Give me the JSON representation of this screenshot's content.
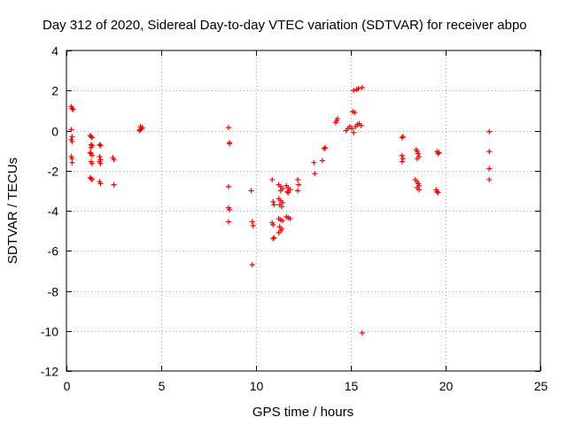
{
  "chart_data": {
    "type": "scatter",
    "title": "Day 312 of 2020, Sidereal Day-to-day VTEC variation (SDTVAR) for receiver abpo",
    "xlabel": "GPS time / hours",
    "ylabel": "SDTVAR / TECUs",
    "xlim": [
      0,
      25
    ],
    "ylim": [
      -12,
      4
    ],
    "xticks": [
      0,
      5,
      10,
      15,
      20,
      25
    ],
    "yticks": [
      -12,
      -10,
      -8,
      -6,
      -4,
      -2,
      0,
      2,
      4
    ],
    "grid": true,
    "marker": "plus",
    "color": "#ff0000",
    "series": [
      {
        "name": "SDTVAR",
        "points": [
          [
            0.25,
            1.2
          ],
          [
            0.3,
            1.1
          ],
          [
            0.35,
            1.05
          ],
          [
            0.25,
            0.05
          ],
          [
            0.3,
            -0.3
          ],
          [
            0.25,
            -0.45
          ],
          [
            0.3,
            -0.55
          ],
          [
            0.25,
            -1.3
          ],
          [
            0.3,
            -1.4
          ],
          [
            0.3,
            -1.6
          ],
          [
            1.25,
            -0.25
          ],
          [
            1.3,
            -0.3
          ],
          [
            1.35,
            -0.35
          ],
          [
            1.3,
            -0.7
          ],
          [
            1.35,
            -0.75
          ],
          [
            1.3,
            -0.85
          ],
          [
            1.25,
            -1.1
          ],
          [
            1.3,
            -1.15
          ],
          [
            1.35,
            -1.25
          ],
          [
            1.3,
            -1.55
          ],
          [
            1.35,
            -1.65
          ],
          [
            1.25,
            -2.35
          ],
          [
            1.3,
            -2.4
          ],
          [
            1.35,
            -2.45
          ],
          [
            1.75,
            -0.7
          ],
          [
            1.8,
            -0.75
          ],
          [
            1.75,
            -1.3
          ],
          [
            1.8,
            -1.45
          ],
          [
            1.75,
            -1.55
          ],
          [
            1.8,
            -1.65
          ],
          [
            1.75,
            -2.55
          ],
          [
            1.8,
            -2.65
          ],
          [
            2.45,
            -1.35
          ],
          [
            2.5,
            -1.45
          ],
          [
            2.5,
            -2.7
          ],
          [
            3.85,
            0.0
          ],
          [
            3.9,
            0.05
          ],
          [
            3.95,
            0.1
          ],
          [
            4.0,
            0.15
          ],
          [
            3.9,
            0.2
          ],
          [
            8.55,
            0.15
          ],
          [
            8.6,
            -0.6
          ],
          [
            8.6,
            -0.65
          ],
          [
            8.55,
            -2.8
          ],
          [
            8.55,
            -3.85
          ],
          [
            8.6,
            -3.95
          ],
          [
            8.55,
            -4.55
          ],
          [
            9.75,
            -3.0
          ],
          [
            9.8,
            -4.55
          ],
          [
            9.85,
            -4.75
          ],
          [
            9.8,
            -6.7
          ],
          [
            10.85,
            -2.45
          ],
          [
            10.9,
            -3.55
          ],
          [
            10.95,
            -3.7
          ],
          [
            10.85,
            -4.6
          ],
          [
            10.9,
            -4.7
          ],
          [
            10.95,
            -5.35
          ],
          [
            10.9,
            -5.4
          ],
          [
            11.2,
            -2.7
          ],
          [
            11.3,
            -2.8
          ],
          [
            11.4,
            -2.9
          ],
          [
            11.3,
            -3.0
          ],
          [
            11.2,
            -3.4
          ],
          [
            11.3,
            -3.5
          ],
          [
            11.4,
            -3.6
          ],
          [
            11.25,
            -3.7
          ],
          [
            11.35,
            -3.8
          ],
          [
            11.2,
            -4.4
          ],
          [
            11.3,
            -4.45
          ],
          [
            11.4,
            -4.5
          ],
          [
            11.25,
            -4.8
          ],
          [
            11.35,
            -4.9
          ],
          [
            11.3,
            -5.0
          ],
          [
            11.2,
            -5.1
          ],
          [
            11.6,
            -2.75
          ],
          [
            11.7,
            -2.85
          ],
          [
            11.8,
            -2.95
          ],
          [
            11.65,
            -3.05
          ],
          [
            11.7,
            -3.1
          ],
          [
            11.6,
            -4.3
          ],
          [
            11.7,
            -4.35
          ],
          [
            11.8,
            -4.4
          ],
          [
            12.2,
            -2.45
          ],
          [
            12.25,
            -2.7
          ],
          [
            12.2,
            -3.0
          ],
          [
            13.05,
            -1.6
          ],
          [
            13.1,
            -2.15
          ],
          [
            13.5,
            -1.5
          ],
          [
            13.6,
            -0.9
          ],
          [
            13.65,
            -0.85
          ],
          [
            14.2,
            0.4
          ],
          [
            14.25,
            0.5
          ],
          [
            14.3,
            0.6
          ],
          [
            14.75,
            0.0
          ],
          [
            14.85,
            0.1
          ],
          [
            14.95,
            0.2
          ],
          [
            15.05,
            0.1
          ],
          [
            15.15,
            -0.1
          ],
          [
            15.1,
            0.95
          ],
          [
            15.2,
            0.9
          ],
          [
            15.25,
            0.2
          ],
          [
            15.35,
            0.3
          ],
          [
            15.45,
            0.35
          ],
          [
            15.55,
            0.25
          ],
          [
            15.15,
            2.0
          ],
          [
            15.3,
            2.05
          ],
          [
            15.4,
            2.1
          ],
          [
            15.6,
            2.15
          ],
          [
            15.6,
            -10.1
          ],
          [
            17.7,
            -0.35
          ],
          [
            17.75,
            -0.3
          ],
          [
            17.7,
            -1.25
          ],
          [
            17.75,
            -1.4
          ],
          [
            17.7,
            -1.55
          ],
          [
            18.45,
            -0.95
          ],
          [
            18.5,
            -1.05
          ],
          [
            18.55,
            -1.15
          ],
          [
            18.6,
            -1.3
          ],
          [
            18.5,
            -1.4
          ],
          [
            18.4,
            -2.45
          ],
          [
            18.5,
            -2.55
          ],
          [
            18.55,
            -2.65
          ],
          [
            18.6,
            -2.75
          ],
          [
            18.5,
            -2.85
          ],
          [
            18.6,
            -2.95
          ],
          [
            19.55,
            -1.05
          ],
          [
            19.6,
            -1.15
          ],
          [
            19.65,
            -1.1
          ],
          [
            19.5,
            -2.95
          ],
          [
            19.55,
            -3.05
          ],
          [
            19.6,
            -3.1
          ],
          [
            22.3,
            -0.05
          ],
          [
            22.3,
            -1.05
          ],
          [
            22.3,
            -1.9
          ],
          [
            22.3,
            -2.45
          ]
        ]
      }
    ]
  }
}
